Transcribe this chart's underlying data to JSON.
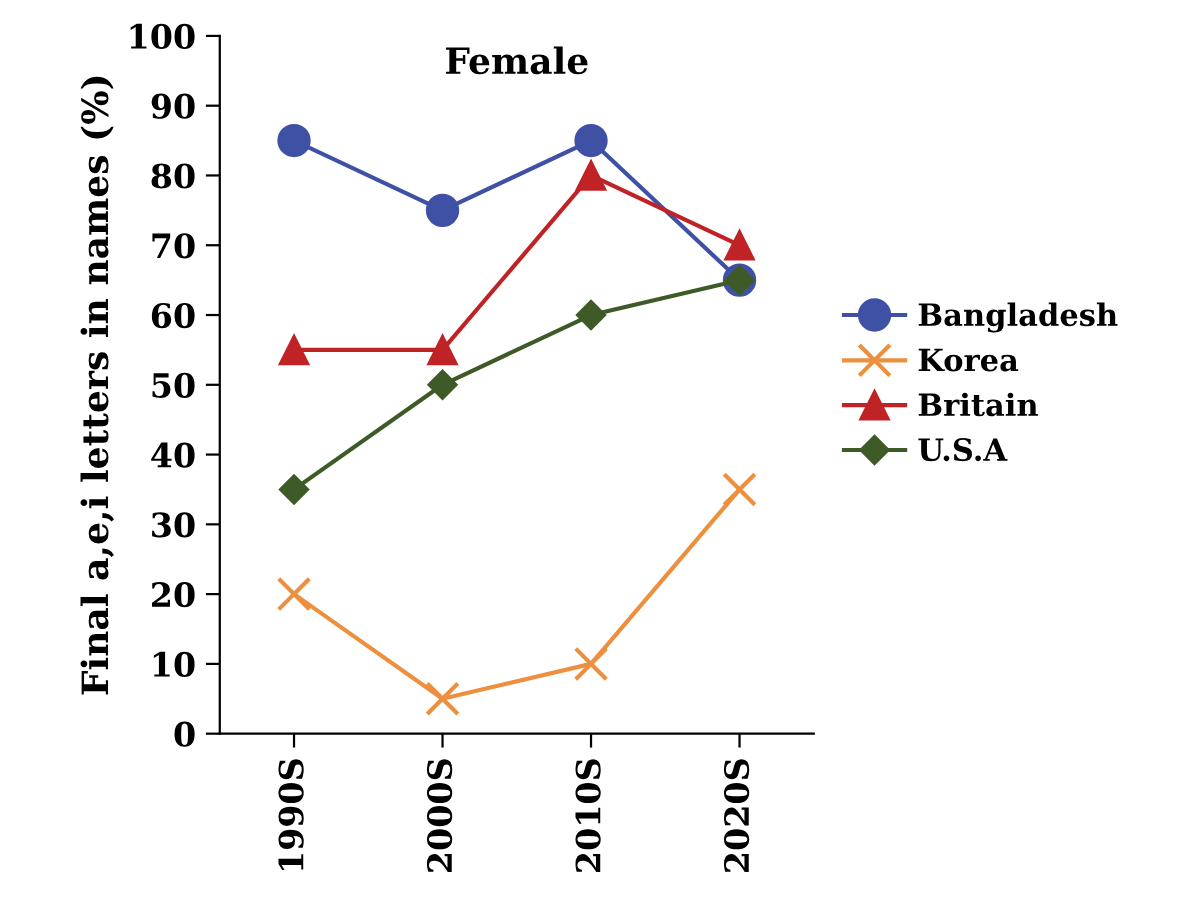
{
  "chart_data": {
    "type": "line",
    "title": "Female",
    "ylabel": "Final a,e,i letters in names (%)",
    "categories": [
      "1990S",
      "2000S",
      "2010S",
      "2020S"
    ],
    "series": [
      {
        "name": "Bangladesh",
        "color": "#3f51a5",
        "marker": "circle",
        "values": [
          85,
          75,
          85,
          65
        ]
      },
      {
        "name": "Korea",
        "color": "#ec8f3e",
        "marker": "cross",
        "values": [
          20,
          5,
          10,
          35
        ]
      },
      {
        "name": "Britain",
        "color": "#c02326",
        "marker": "triangle",
        "values": [
          55,
          55,
          80,
          70
        ]
      },
      {
        "name": "U.S.A",
        "color": "#3d5a27",
        "marker": "diamond",
        "values": [
          35,
          50,
          60,
          65
        ]
      }
    ],
    "ylim": [
      0,
      100
    ],
    "yticks": [
      0,
      10,
      20,
      30,
      40,
      50,
      60,
      70,
      80,
      90,
      100
    ],
    "grid": false,
    "legend": "right",
    "line_style": "solid"
  }
}
